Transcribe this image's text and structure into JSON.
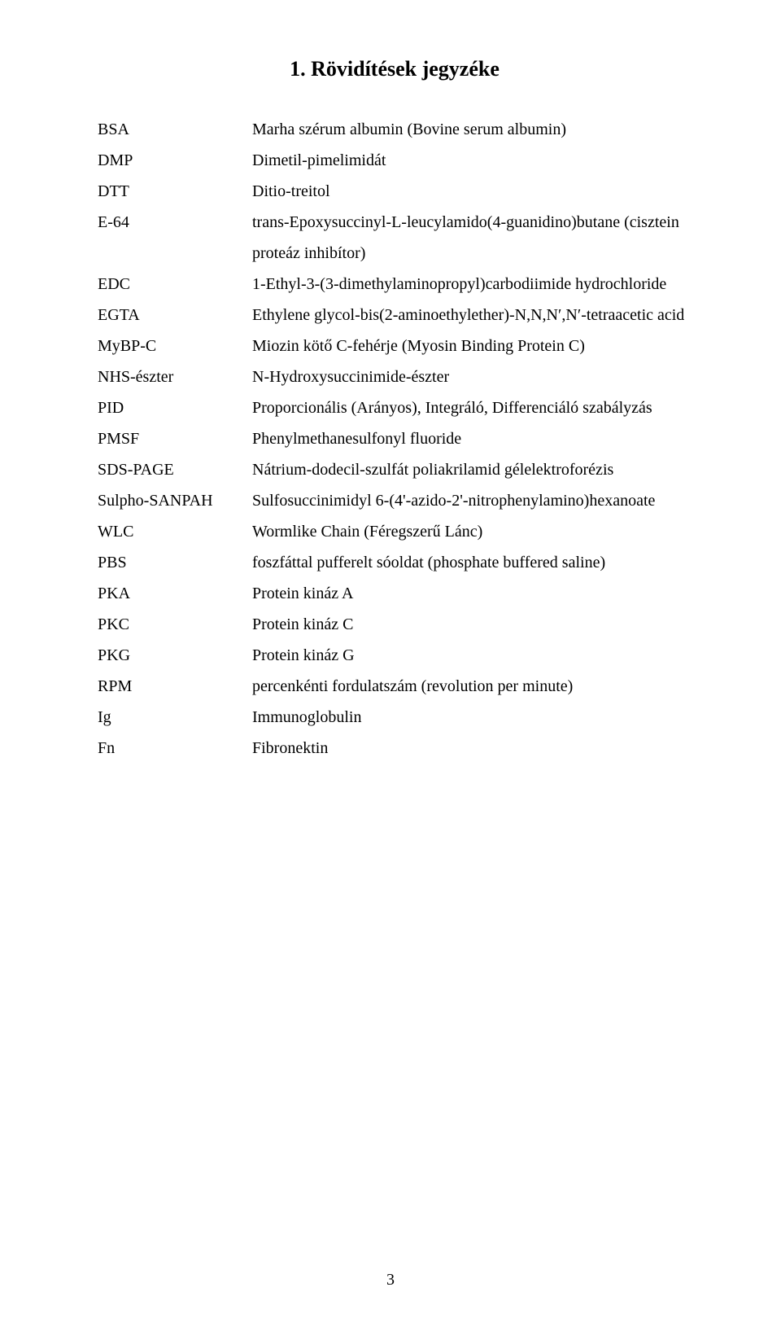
{
  "title": "1. Rövidítések jegyzéke",
  "page_number": "3",
  "entries": [
    {
      "abbr": "BSA",
      "def": "Marha szérum albumin (Bovine serum albumin)"
    },
    {
      "abbr": "DMP",
      "def": "Dimetil-pimelimidát"
    },
    {
      "abbr": "DTT",
      "def": "Ditio-treitol"
    },
    {
      "abbr": "E-64",
      "def": "trans-Epoxysuccinyl-L-leucylamido(4-guanidino)butane (cisztein proteáz inhibítor)"
    },
    {
      "abbr": "EDC",
      "def": "1-Ethyl-3-(3-dimethylaminopropyl)carbodiimide hydrochloride"
    },
    {
      "abbr": "EGTA",
      "def": "Ethylene glycol-bis(2-aminoethylether)-N,N,N′,N′-tetraacetic acid"
    },
    {
      "abbr": "MyBP-C",
      "def": "Miozin kötő C-fehérje (Myosin Binding Protein C)"
    },
    {
      "abbr": "NHS-észter",
      "def": "N-Hydroxysuccinimide-észter"
    },
    {
      "abbr": "PID",
      "def": "Proporcionális (Arányos), Integráló, Differenciáló szabályzás"
    },
    {
      "abbr": "PMSF",
      "def": "Phenylmethanesulfonyl fluoride"
    },
    {
      "abbr": "SDS-PAGE",
      "def": "Nátrium-dodecil-szulfát poliakrilamid gélelektroforézis"
    },
    {
      "abbr": "Sulpho-SANPAH",
      "def": "Sulfosuccinimidyl 6-(4'-azido-2'-nitrophenylamino)hexanoate"
    },
    {
      "abbr": "WLC",
      "def": "Wormlike Chain (Féregszerű Lánc)"
    },
    {
      "abbr": "PBS",
      "def": "foszfáttal pufferelt sóoldat (phosphate buffered saline)"
    },
    {
      "abbr": "PKA",
      "def": "Protein kináz A"
    },
    {
      "abbr": "PKC",
      "def": "Protein kináz C"
    },
    {
      "abbr": "PKG",
      "def": "Protein kináz G"
    },
    {
      "abbr": "RPM",
      "def": "percenkénti fordulatszám (revolution per minute)"
    },
    {
      "abbr": "Ig",
      "def": "Immunoglobulin"
    },
    {
      "abbr": "Fn",
      "def": "Fibronektin"
    }
  ]
}
